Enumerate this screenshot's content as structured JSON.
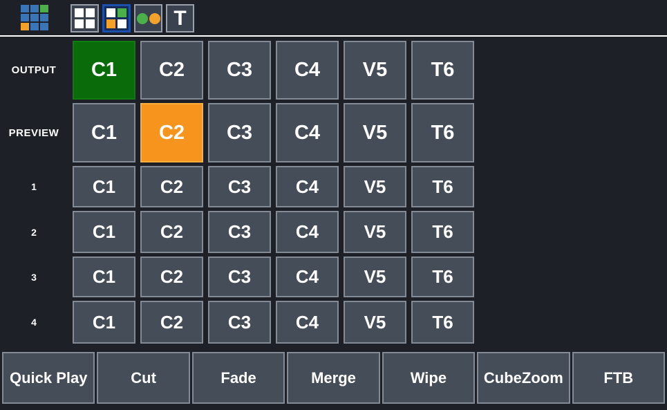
{
  "colors": {
    "background": "#1d2127",
    "button_bg": "#454d59",
    "button_border": "#828b96",
    "active_output_green": "#0a6b0a",
    "active_preview_orange": "#f7941e",
    "toolbar_selected_border_blue": "#1d50ab",
    "logo_blue": "#3a76b7",
    "logo_green": "#4cb04a",
    "logo_orange": "#f2a229",
    "text": "#ffffff"
  },
  "toolbar": {
    "logo_cells": [
      "blue",
      "blue",
      "green",
      "blue",
      "blue",
      "blue",
      "orange",
      "blue",
      "blue"
    ],
    "buttons": [
      {
        "icon": "grid-2x2-white-icon",
        "selected": false
      },
      {
        "icon": "grid-2x2-color-icon",
        "selected": true,
        "cells": [
          "white",
          "green",
          "orange",
          "white"
        ]
      },
      {
        "icon": "two-dots-icon",
        "selected": false,
        "dots": [
          "green",
          "orange"
        ]
      },
      {
        "icon": "text-tool-icon",
        "selected": false,
        "label": "T"
      }
    ]
  },
  "matrix": {
    "columns": [
      "C1",
      "C2",
      "C3",
      "C4",
      "V5",
      "T6"
    ],
    "rows": [
      {
        "label": "OUTPUT",
        "active_cell": "C1",
        "active_color": "green",
        "cells": [
          "C1",
          "C2",
          "C3",
          "C4",
          "V5",
          "T6"
        ]
      },
      {
        "label": "PREVIEW",
        "active_cell": "C2",
        "active_color": "orange",
        "cells": [
          "C1",
          "C2",
          "C3",
          "C4",
          "V5",
          "T6"
        ]
      },
      {
        "label": "1",
        "cells": [
          "C1",
          "C2",
          "C3",
          "C4",
          "V5",
          "T6"
        ]
      },
      {
        "label": "2",
        "cells": [
          "C1",
          "C2",
          "C3",
          "C4",
          "V5",
          "T6"
        ]
      },
      {
        "label": "3",
        "cells": [
          "C1",
          "C2",
          "C3",
          "C4",
          "V5",
          "T6"
        ]
      },
      {
        "label": "4",
        "cells": [
          "C1",
          "C2",
          "C3",
          "C4",
          "V5",
          "T6"
        ]
      }
    ]
  },
  "transitions": [
    "Quick Play",
    "Cut",
    "Fade",
    "Merge",
    "Wipe",
    "CubeZoom",
    "FTB"
  ]
}
